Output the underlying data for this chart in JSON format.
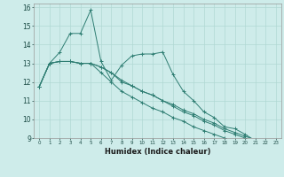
{
  "xlabel": "Humidex (Indice chaleur)",
  "background_color": "#ceecea",
  "grid_color": "#b0d8d4",
  "line_color": "#2e7d72",
  "xlim": [
    -0.5,
    23.5
  ],
  "ylim": [
    9,
    16.2
  ],
  "xticks": [
    0,
    1,
    2,
    3,
    4,
    5,
    6,
    7,
    8,
    9,
    10,
    11,
    12,
    13,
    14,
    15,
    16,
    17,
    18,
    19,
    20,
    21,
    22,
    23
  ],
  "yticks": [
    9,
    10,
    11,
    12,
    13,
    14,
    15,
    16
  ],
  "series": [
    {
      "x": [
        0,
        1,
        2,
        3,
        4,
        5,
        6,
        7,
        8,
        9,
        10,
        11,
        12,
        13,
        14,
        15,
        16,
        17,
        18,
        19,
        20,
        21
      ],
      "y": [
        11.75,
        13.0,
        13.6,
        14.6,
        14.6,
        15.85,
        13.1,
        12.1,
        12.9,
        13.4,
        13.5,
        13.5,
        13.6,
        12.4,
        11.5,
        11.0,
        10.4,
        10.1,
        9.6,
        9.5,
        9.2,
        8.85
      ]
    },
    {
      "x": [
        0,
        1,
        2,
        3,
        4,
        5,
        6,
        7,
        8,
        9,
        10,
        11,
        12,
        13,
        14,
        15,
        16,
        17,
        18,
        19,
        20,
        21,
        22
      ],
      "y": [
        11.75,
        13.0,
        13.1,
        13.1,
        13.0,
        13.0,
        12.8,
        12.5,
        12.1,
        11.8,
        11.5,
        11.3,
        11.0,
        10.8,
        10.5,
        10.3,
        10.0,
        9.8,
        9.5,
        9.3,
        9.1,
        8.9,
        8.8
      ]
    },
    {
      "x": [
        0,
        1,
        2,
        3,
        4,
        5,
        6,
        7,
        8,
        9,
        10,
        11,
        12,
        13,
        14,
        15,
        16,
        17,
        18
      ],
      "y": [
        11.75,
        13.0,
        13.1,
        13.1,
        13.0,
        13.0,
        12.5,
        12.0,
        11.5,
        11.2,
        10.9,
        10.6,
        10.4,
        10.1,
        9.9,
        9.6,
        9.4,
        9.2,
        9.0
      ]
    },
    {
      "x": [
        0,
        1,
        2,
        3,
        4,
        5,
        6,
        7,
        8,
        9,
        10,
        11,
        12,
        13,
        14,
        15,
        16,
        17,
        18,
        19,
        20,
        21
      ],
      "y": [
        11.75,
        13.0,
        13.1,
        13.1,
        13.0,
        13.0,
        12.8,
        12.5,
        12.0,
        11.8,
        11.5,
        11.3,
        11.0,
        10.7,
        10.4,
        10.2,
        9.9,
        9.7,
        9.4,
        9.2,
        9.0,
        8.8
      ]
    }
  ]
}
